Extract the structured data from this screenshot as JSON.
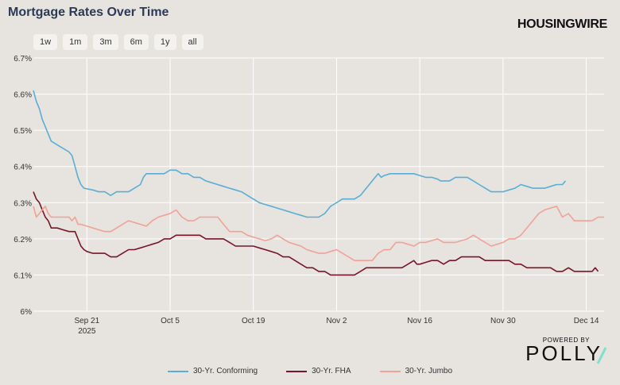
{
  "title": "Mortgage Rates Over Time",
  "brand": "HOUSINGWIRE",
  "powered_by": "POWERED BY",
  "powered_brand": "POLLY",
  "range_buttons": [
    "1w",
    "1m",
    "3m",
    "6m",
    "1y",
    "all"
  ],
  "colors": {
    "background": "#e7e3df",
    "conforming": "#5aaed6",
    "fha": "#7a1428",
    "jumbo": "#f2a197",
    "grid": "#ffffff"
  },
  "chart_data": {
    "type": "line",
    "x_start": "2025-09-12",
    "x_end": "2025-12-17",
    "x_ticks": [
      {
        "date": "2025-09-21",
        "label": "Sep 21",
        "sublabel": "2025"
      },
      {
        "date": "2025-10-05",
        "label": "Oct 5",
        "sublabel": ""
      },
      {
        "date": "2025-10-19",
        "label": "Oct 19",
        "sublabel": ""
      },
      {
        "date": "2025-11-02",
        "label": "Nov 2",
        "sublabel": ""
      },
      {
        "date": "2025-11-16",
        "label": "Nov 16",
        "sublabel": ""
      },
      {
        "date": "2025-11-30",
        "label": "Nov 30",
        "sublabel": ""
      },
      {
        "date": "2025-12-14",
        "label": "Dec 14",
        "sublabel": ""
      }
    ],
    "ylim": [
      6.0,
      6.7
    ],
    "y_ticks": [
      {
        "value": 6.0,
        "label": "6%"
      },
      {
        "value": 6.1,
        "label": "6.1%"
      },
      {
        "value": 6.2,
        "label": "6.2%"
      },
      {
        "value": 6.3,
        "label": "6.3%"
      },
      {
        "value": 6.4,
        "label": "6.4%"
      },
      {
        "value": 6.5,
        "label": "6.5%"
      },
      {
        "value": 6.6,
        "label": "6.6%"
      },
      {
        "value": 6.7,
        "label": "6.7%"
      }
    ],
    "series": [
      {
        "name": "30-Yr. Conforming",
        "color": "#5aaed6",
        "points": [
          [
            0,
            6.61
          ],
          [
            0.5,
            6.58
          ],
          [
            1,
            6.56
          ],
          [
            1.5,
            6.53
          ],
          [
            2,
            6.51
          ],
          [
            2.5,
            6.49
          ],
          [
            3,
            6.47
          ],
          [
            4,
            6.46
          ],
          [
            5,
            6.45
          ],
          [
            6,
            6.44
          ],
          [
            6.5,
            6.43
          ],
          [
            7,
            6.4
          ],
          [
            7.5,
            6.37
          ],
          [
            8,
            6.35
          ],
          [
            8.5,
            6.34
          ],
          [
            10,
            6.335
          ],
          [
            11,
            6.33
          ],
          [
            12,
            6.33
          ],
          [
            13,
            6.32
          ],
          [
            14,
            6.33
          ],
          [
            15,
            6.33
          ],
          [
            16,
            6.33
          ],
          [
            17,
            6.34
          ],
          [
            18,
            6.35
          ],
          [
            18.5,
            6.37
          ],
          [
            19,
            6.38
          ],
          [
            20,
            6.38
          ],
          [
            21,
            6.38
          ],
          [
            22,
            6.38
          ],
          [
            23,
            6.39
          ],
          [
            24,
            6.39
          ],
          [
            25,
            6.38
          ],
          [
            26,
            6.38
          ],
          [
            27,
            6.37
          ],
          [
            28,
            6.37
          ],
          [
            29,
            6.36
          ],
          [
            30,
            6.355
          ],
          [
            31,
            6.35
          ],
          [
            32,
            6.345
          ],
          [
            33,
            6.34
          ],
          [
            34,
            6.335
          ],
          [
            35,
            6.33
          ],
          [
            36,
            6.32
          ],
          [
            37,
            6.31
          ],
          [
            38,
            6.3
          ],
          [
            39,
            6.295
          ],
          [
            40,
            6.29
          ],
          [
            41,
            6.285
          ],
          [
            42,
            6.28
          ],
          [
            43,
            6.275
          ],
          [
            44,
            6.27
          ],
          [
            45,
            6.265
          ],
          [
            46,
            6.26
          ],
          [
            47,
            6.26
          ],
          [
            48,
            6.26
          ],
          [
            49,
            6.27
          ],
          [
            50,
            6.29
          ],
          [
            51,
            6.3
          ],
          [
            52,
            6.31
          ],
          [
            53,
            6.31
          ],
          [
            54,
            6.31
          ],
          [
            55,
            6.32
          ],
          [
            56,
            6.34
          ],
          [
            57,
            6.36
          ],
          [
            58,
            6.38
          ],
          [
            58.5,
            6.37
          ],
          [
            59,
            6.375
          ],
          [
            60,
            6.38
          ],
          [
            61,
            6.38
          ],
          [
            62,
            6.38
          ],
          [
            63,
            6.38
          ],
          [
            64,
            6.38
          ],
          [
            65,
            6.375
          ],
          [
            66,
            6.37
          ],
          [
            67,
            6.37
          ],
          [
            68,
            6.365
          ],
          [
            68.5,
            6.36
          ],
          [
            69,
            6.36
          ],
          [
            70,
            6.36
          ],
          [
            71,
            6.37
          ],
          [
            72,
            6.37
          ],
          [
            73,
            6.37
          ],
          [
            74,
            6.36
          ],
          [
            75,
            6.35
          ],
          [
            76,
            6.34
          ],
          [
            77,
            6.33
          ],
          [
            78,
            6.33
          ],
          [
            79,
            6.33
          ],
          [
            80,
            6.335
          ],
          [
            81,
            6.34
          ],
          [
            82,
            6.35
          ],
          [
            83,
            6.345
          ],
          [
            84,
            6.34
          ],
          [
            85,
            6.34
          ],
          [
            86,
            6.34
          ],
          [
            87,
            6.345
          ],
          [
            88,
            6.35
          ],
          [
            89,
            6.35
          ],
          [
            89.5,
            6.36
          ]
        ]
      },
      {
        "name": "30-Yr. FHA",
        "color": "#7a1428",
        "points": [
          [
            0,
            6.33
          ],
          [
            0.5,
            6.31
          ],
          [
            1,
            6.3
          ],
          [
            1.5,
            6.28
          ],
          [
            2,
            6.26
          ],
          [
            2.5,
            6.25
          ],
          [
            3,
            6.23
          ],
          [
            4,
            6.23
          ],
          [
            5,
            6.225
          ],
          [
            6,
            6.22
          ],
          [
            7,
            6.22
          ],
          [
            7.5,
            6.2
          ],
          [
            8,
            6.18
          ],
          [
            8.5,
            6.17
          ],
          [
            9,
            6.165
          ],
          [
            10,
            6.16
          ],
          [
            11,
            6.16
          ],
          [
            12,
            6.16
          ],
          [
            13,
            6.15
          ],
          [
            14,
            6.15
          ],
          [
            15,
            6.16
          ],
          [
            16,
            6.17
          ],
          [
            17,
            6.17
          ],
          [
            18,
            6.175
          ],
          [
            19,
            6.18
          ],
          [
            20,
            6.185
          ],
          [
            21,
            6.19
          ],
          [
            22,
            6.2
          ],
          [
            23,
            6.2
          ],
          [
            24,
            6.21
          ],
          [
            25,
            6.21
          ],
          [
            26,
            6.21
          ],
          [
            27,
            6.21
          ],
          [
            28,
            6.21
          ],
          [
            29,
            6.2
          ],
          [
            30,
            6.2
          ],
          [
            31,
            6.2
          ],
          [
            32,
            6.2
          ],
          [
            33,
            6.19
          ],
          [
            34,
            6.18
          ],
          [
            35,
            6.18
          ],
          [
            36,
            6.18
          ],
          [
            37,
            6.18
          ],
          [
            38,
            6.175
          ],
          [
            39,
            6.17
          ],
          [
            40,
            6.165
          ],
          [
            41,
            6.16
          ],
          [
            42,
            6.15
          ],
          [
            43,
            6.15
          ],
          [
            44,
            6.14
          ],
          [
            45,
            6.13
          ],
          [
            46,
            6.12
          ],
          [
            47,
            6.12
          ],
          [
            48,
            6.11
          ],
          [
            49,
            6.11
          ],
          [
            50,
            6.1
          ],
          [
            51,
            6.1
          ],
          [
            52,
            6.1
          ],
          [
            53,
            6.1
          ],
          [
            54,
            6.1
          ],
          [
            55,
            6.11
          ],
          [
            56,
            6.12
          ],
          [
            57,
            6.12
          ],
          [
            58,
            6.12
          ],
          [
            59,
            6.12
          ],
          [
            60,
            6.12
          ],
          [
            61,
            6.12
          ],
          [
            62,
            6.12
          ],
          [
            63,
            6.13
          ],
          [
            64,
            6.14
          ],
          [
            64.5,
            6.13
          ],
          [
            65,
            6.13
          ],
          [
            66,
            6.135
          ],
          [
            67,
            6.14
          ],
          [
            68,
            6.14
          ],
          [
            69,
            6.13
          ],
          [
            70,
            6.14
          ],
          [
            71,
            6.14
          ],
          [
            72,
            6.15
          ],
          [
            73,
            6.15
          ],
          [
            74,
            6.15
          ],
          [
            75,
            6.15
          ],
          [
            76,
            6.14
          ],
          [
            77,
            6.14
          ],
          [
            78,
            6.14
          ],
          [
            79,
            6.14
          ],
          [
            80,
            6.14
          ],
          [
            81,
            6.13
          ],
          [
            82,
            6.13
          ],
          [
            83,
            6.12
          ],
          [
            84,
            6.12
          ],
          [
            85,
            6.12
          ],
          [
            86,
            6.12
          ],
          [
            87,
            6.12
          ],
          [
            88,
            6.11
          ],
          [
            89,
            6.11
          ],
          [
            90,
            6.12
          ],
          [
            91,
            6.11
          ],
          [
            92,
            6.11
          ],
          [
            93,
            6.11
          ],
          [
            94,
            6.11
          ],
          [
            94.5,
            6.12
          ],
          [
            95,
            6.11
          ]
        ]
      },
      {
        "name": "30-Yr. Jumbo",
        "color": "#f2a197",
        "points": [
          [
            0,
            6.29
          ],
          [
            0.5,
            6.26
          ],
          [
            1,
            6.27
          ],
          [
            1.5,
            6.28
          ],
          [
            2,
            6.29
          ],
          [
            2.5,
            6.27
          ],
          [
            3,
            6.26
          ],
          [
            4,
            6.26
          ],
          [
            5,
            6.26
          ],
          [
            6,
            6.26
          ],
          [
            6.5,
            6.25
          ],
          [
            7,
            6.26
          ],
          [
            7.5,
            6.24
          ],
          [
            8,
            6.24
          ],
          [
            9,
            6.235
          ],
          [
            10,
            6.23
          ],
          [
            11,
            6.225
          ],
          [
            12,
            6.22
          ],
          [
            13,
            6.22
          ],
          [
            14,
            6.23
          ],
          [
            15,
            6.24
          ],
          [
            16,
            6.25
          ],
          [
            17,
            6.245
          ],
          [
            18,
            6.24
          ],
          [
            19,
            6.235
          ],
          [
            20,
            6.25
          ],
          [
            21,
            6.26
          ],
          [
            22,
            6.265
          ],
          [
            23,
            6.27
          ],
          [
            24,
            6.28
          ],
          [
            25,
            6.26
          ],
          [
            26,
            6.25
          ],
          [
            27,
            6.25
          ],
          [
            28,
            6.26
          ],
          [
            29,
            6.26
          ],
          [
            30,
            6.26
          ],
          [
            31,
            6.26
          ],
          [
            32,
            6.24
          ],
          [
            33,
            6.22
          ],
          [
            34,
            6.22
          ],
          [
            35,
            6.22
          ],
          [
            36,
            6.21
          ],
          [
            37,
            6.205
          ],
          [
            38,
            6.2
          ],
          [
            39,
            6.195
          ],
          [
            40,
            6.2
          ],
          [
            41,
            6.21
          ],
          [
            42,
            6.2
          ],
          [
            43,
            6.19
          ],
          [
            44,
            6.185
          ],
          [
            45,
            6.18
          ],
          [
            46,
            6.17
          ],
          [
            47,
            6.165
          ],
          [
            48,
            6.16
          ],
          [
            49,
            6.16
          ],
          [
            50,
            6.165
          ],
          [
            51,
            6.17
          ],
          [
            52,
            6.16
          ],
          [
            53,
            6.15
          ],
          [
            54,
            6.14
          ],
          [
            55,
            6.14
          ],
          [
            56,
            6.14
          ],
          [
            57,
            6.14
          ],
          [
            58,
            6.16
          ],
          [
            59,
            6.17
          ],
          [
            60,
            6.17
          ],
          [
            61,
            6.19
          ],
          [
            62,
            6.19
          ],
          [
            63,
            6.185
          ],
          [
            64,
            6.18
          ],
          [
            65,
            6.19
          ],
          [
            66,
            6.19
          ],
          [
            67,
            6.195
          ],
          [
            68,
            6.2
          ],
          [
            69,
            6.19
          ],
          [
            70,
            6.19
          ],
          [
            71,
            6.19
          ],
          [
            72,
            6.195
          ],
          [
            73,
            6.2
          ],
          [
            74,
            6.21
          ],
          [
            75,
            6.2
          ],
          [
            76,
            6.19
          ],
          [
            77,
            6.18
          ],
          [
            78,
            6.185
          ],
          [
            79,
            6.19
          ],
          [
            80,
            6.2
          ],
          [
            81,
            6.2
          ],
          [
            82,
            6.21
          ],
          [
            83,
            6.23
          ],
          [
            84,
            6.25
          ],
          [
            85,
            6.27
          ],
          [
            86,
            6.28
          ],
          [
            87,
            6.285
          ],
          [
            88,
            6.29
          ],
          [
            89,
            6.26
          ],
          [
            90,
            6.27
          ],
          [
            91,
            6.25
          ],
          [
            92,
            6.25
          ],
          [
            93,
            6.25
          ],
          [
            94,
            6.25
          ],
          [
            95,
            6.26
          ],
          [
            96,
            6.26
          ]
        ]
      }
    ]
  }
}
